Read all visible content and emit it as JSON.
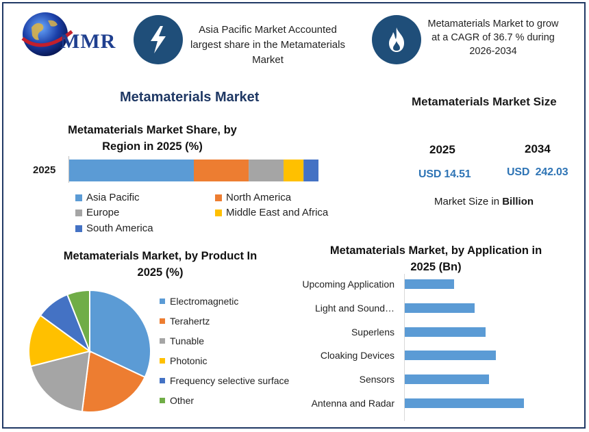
{
  "logo": {
    "text": "MMR"
  },
  "info": {
    "left_text": "Asia Pacific Market Accounted largest share in the Metamaterials Market",
    "right_text": "Metamaterials Market to grow at a CAGR of 36.7 % during 2026-2034",
    "left_icon": "lightning-icon",
    "right_icon": "flame-icon",
    "icon_color": "#1f4e79"
  },
  "main_title": "Metamaterials Market",
  "market_size": {
    "title": "Metamaterials Market Size",
    "year_a": "2025",
    "year_b": "2034",
    "value_a": "USD 14.51",
    "value_b": "USD  242.03",
    "note_prefix": "Market Size in ",
    "note_bold": "Billion"
  },
  "chart_data": [
    {
      "type": "bar",
      "orientation": "horizontal-stacked",
      "title": "Metamaterials Market Share, by Region in 2025 (%)",
      "categories": [
        "2025"
      ],
      "series": [
        {
          "name": "Asia Pacific",
          "values": [
            50
          ],
          "color": "#5b9bd5"
        },
        {
          "name": "North America",
          "values": [
            22
          ],
          "color": "#ed7d31"
        },
        {
          "name": "Europe",
          "values": [
            14
          ],
          "color": "#a5a5a5"
        },
        {
          "name": "Middle East and Africa",
          "values": [
            8
          ],
          "color": "#ffc000"
        },
        {
          "name": "South America",
          "values": [
            6
          ],
          "color": "#4472c4"
        }
      ],
      "xlim": [
        0,
        100
      ]
    },
    {
      "type": "pie",
      "title": "Metamaterials Market, by Product In 2025 (%)",
      "slices": [
        {
          "name": "Electromagnetic",
          "value": 32,
          "color": "#5b9bd5"
        },
        {
          "name": "Terahertz",
          "value": 20,
          "color": "#ed7d31"
        },
        {
          "name": "Tunable",
          "value": 19,
          "color": "#a5a5a5"
        },
        {
          "name": "Photonic",
          "value": 14,
          "color": "#ffc000"
        },
        {
          "name": "Frequency selective surface",
          "value": 9,
          "color": "#4472c4"
        },
        {
          "name": "Other",
          "value": 6,
          "color": "#70ad47"
        }
      ]
    },
    {
      "type": "bar",
      "orientation": "horizontal",
      "title": "Metamaterials Market, by Application in 2025 (Bn)",
      "categories": [
        "Upcoming Application",
        "Light and Sound…",
        "Superlens",
        "Cloaking Devices",
        "Sensors",
        "Antenna and Radar"
      ],
      "values": [
        1.4,
        2.0,
        2.3,
        2.6,
        2.4,
        3.4
      ],
      "color": "#5b9bd5",
      "xlim": [
        0,
        4.5
      ]
    }
  ]
}
